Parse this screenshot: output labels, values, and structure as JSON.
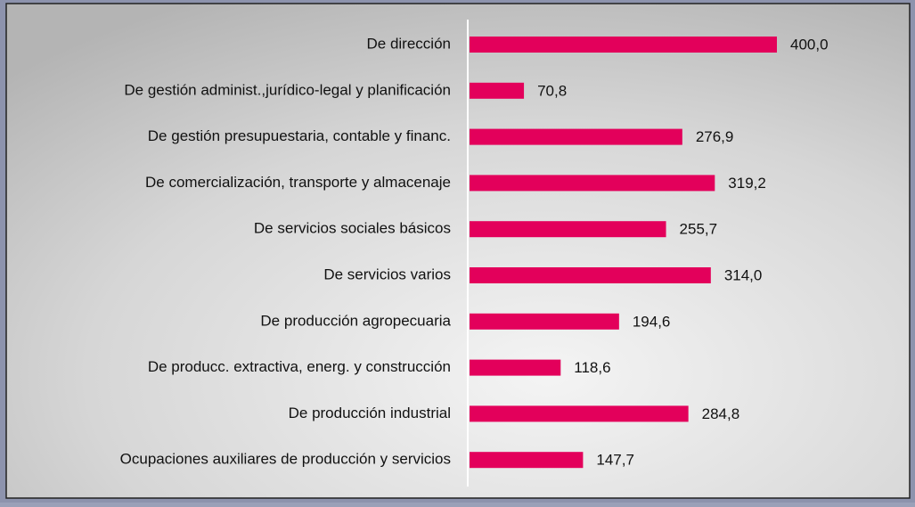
{
  "chart_data": {
    "type": "bar",
    "orientation": "horizontal",
    "categories": [
      "De dirección",
      "De gestión administ.,jurídico-legal y planificación",
      "De gestión presupuestaria, contable y financ.",
      "De comercialización, transporte y almacenaje",
      "De servicios sociales básicos",
      "De servicios varios",
      "De producción agropecuaria",
      "De producc. extractiva, energ. y construcción",
      "De producción industrial",
      "Ocupaciones auxiliares de producción y servicios"
    ],
    "values": [
      400.0,
      70.8,
      276.9,
      319.2,
      255.7,
      314.0,
      194.6,
      118.6,
      284.8,
      147.7
    ],
    "value_labels": [
      "400,0",
      "70,8",
      "276,9",
      "319,2",
      "255,7",
      "314,0",
      "194,6",
      "118,6",
      "284,8",
      "147,7"
    ],
    "color": "#e3005b"
  }
}
